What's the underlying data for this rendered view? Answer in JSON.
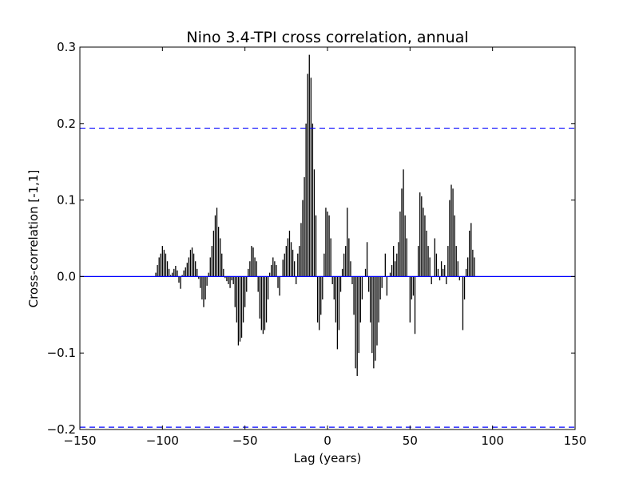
{
  "chart_data": {
    "type": "bar",
    "title": "Nino 3.4-TPI cross correlation, annual",
    "xlabel": "Lag (years)",
    "ylabel": "Cross-correlation [-1,1]",
    "xlim": [
      -150,
      150
    ],
    "ylim": [
      -0.2,
      0.3
    ],
    "xticks": [
      -150,
      -100,
      -50,
      0,
      50,
      100,
      150
    ],
    "xtick_labels": [
      "−150",
      "−100",
      "−50",
      "0",
      "50",
      "100",
      "150"
    ],
    "yticks": [
      -0.2,
      -0.1,
      0.0,
      0.1,
      0.2,
      0.3
    ],
    "ytick_labels": [
      "−0.2",
      "−0.1",
      "0.0",
      "0.1",
      "0.2",
      "0.3"
    ],
    "grid": false,
    "legend": "none",
    "bar_color": "#000000",
    "zero_line_color": "#0000ff",
    "confidence_line_color": "#0000ff",
    "confidence_bounds": [
      0.194,
      -0.197
    ],
    "lag_start": -104,
    "lag_step": 1,
    "values": [
      0.005,
      0.015,
      0.025,
      0.03,
      0.04,
      0.035,
      0.03,
      0.02,
      0.01,
      0.002,
      0.005,
      0.01,
      0.014,
      0.008,
      -0.008,
      -0.016,
      0.002,
      0.008,
      0.012,
      0.018,
      0.025,
      0.035,
      0.038,
      0.03,
      0.02,
      0.01,
      -0.003,
      -0.015,
      -0.03,
      -0.04,
      -0.03,
      -0.012,
      0.005,
      0.025,
      0.04,
      0.06,
      0.08,
      0.09,
      0.065,
      0.05,
      0.03,
      0.01,
      -0.002,
      -0.006,
      -0.01,
      -0.015,
      -0.005,
      -0.01,
      -0.04,
      -0.06,
      -0.09,
      -0.085,
      -0.08,
      -0.06,
      -0.04,
      -0.02,
      0.01,
      0.02,
      0.04,
      0.038,
      0.025,
      0.02,
      -0.02,
      -0.055,
      -0.07,
      -0.075,
      -0.07,
      -0.06,
      -0.03,
      0.005,
      0.015,
      0.025,
      0.02,
      0.015,
      -0.015,
      -0.025,
      0.0,
      0.022,
      0.03,
      0.04,
      0.05,
      0.06,
      0.045,
      0.035,
      0.02,
      -0.01,
      0.03,
      0.04,
      0.07,
      0.1,
      0.13,
      0.2,
      0.265,
      0.29,
      0.26,
      0.2,
      0.14,
      0.08,
      -0.06,
      -0.07,
      -0.05,
      -0.03,
      0.03,
      0.09,
      0.085,
      0.08,
      0.05,
      -0.01,
      -0.03,
      -0.06,
      -0.095,
      -0.07,
      -0.02,
      0.01,
      0.03,
      0.04,
      0.09,
      0.05,
      0.02,
      -0.01,
      -0.05,
      -0.12,
      -0.13,
      -0.1,
      -0.06,
      -0.03,
      0.0,
      0.01,
      0.045,
      -0.02,
      -0.06,
      -0.1,
      -0.12,
      -0.11,
      -0.09,
      -0.06,
      -0.03,
      -0.015,
      0.0,
      0.03,
      -0.025,
      0.0,
      0.005,
      0.015,
      0.04,
      0.02,
      0.03,
      0.045,
      0.085,
      0.115,
      0.14,
      0.08,
      0.05,
      0.0,
      -0.06,
      -0.03,
      -0.025,
      -0.075,
      0.0,
      0.04,
      0.11,
      0.105,
      0.09,
      0.08,
      0.06,
      0.04,
      0.025,
      -0.01,
      0.0,
      0.05,
      0.03,
      0.01,
      -0.005,
      0.02,
      0.01,
      0.015,
      -0.01,
      0.04,
      0.1,
      0.12,
      0.115,
      0.08,
      0.04,
      0.02,
      -0.005,
      0.0,
      -0.07,
      -0.03,
      0.01,
      0.025,
      0.06,
      0.07,
      0.035,
      0.025
    ]
  }
}
